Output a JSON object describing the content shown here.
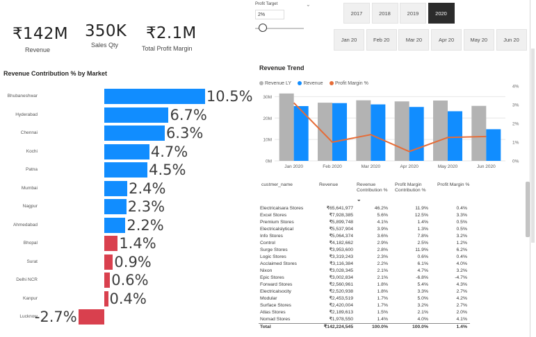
{
  "kpis": [
    {
      "value": "₹142M",
      "label": "Revenue"
    },
    {
      "value": "350K",
      "label": "Sales Qty"
    },
    {
      "value": "₹2.1M",
      "label": "Total Profit Margin"
    }
  ],
  "profit_target": {
    "label": "Profit Target",
    "value": "2%",
    "slider_level": 0.15
  },
  "years": [
    {
      "label": "2017",
      "selected": false
    },
    {
      "label": "2018",
      "selected": false
    },
    {
      "label": "2019",
      "selected": false
    },
    {
      "label": "2020",
      "selected": true
    }
  ],
  "months": [
    "Jan 20",
    "Feb 20",
    "Mar 20",
    "Apr 20",
    "May 20",
    "Jun 20"
  ],
  "market_chart": {
    "title": "Revenue Contribution % by Market",
    "markets": [
      "Bhubaneshwar",
      "Hyderabad",
      "Chennai",
      "Kochi",
      "Patna",
      "Mumbai",
      "Nagpur",
      "Ahmedabad",
      "Bhopal",
      "Surat",
      "Delhi NCR",
      "Kanpur",
      "Lucknow"
    ],
    "values": [
      10.5,
      6.7,
      6.3,
      4.7,
      4.5,
      2.4,
      2.3,
      2.2,
      1.4,
      0.9,
      0.6,
      0.4,
      -2.7
    ],
    "labels": [
      "10.5%",
      "6.7%",
      "6.3%",
      "4.7%",
      "4.5%",
      "2.4%",
      "2.3%",
      "2.2%",
      "1.4%",
      "0.9%",
      "0.6%",
      "0.4%",
      "-2.7%"
    ],
    "colors": {
      "above": "#118DFF",
      "below": "#D9404E"
    }
  },
  "trend_chart": {
    "title": "Revenue Trend",
    "legend": [
      {
        "name": "Revenue LY",
        "color": "#B3B3B3"
      },
      {
        "name": "Revenue",
        "color": "#118DFF"
      },
      {
        "name": "Profit Margin %",
        "color": "#E66C37"
      }
    ],
    "left_ticks": [
      "30M",
      "20M",
      "10M",
      "0M"
    ],
    "right_ticks": [
      "4%",
      "3%",
      "2%",
      "1%",
      "0%"
    ]
  },
  "chart_data": [
    {
      "type": "bar",
      "title": "Revenue Contribution % by Market",
      "categories": [
        "Bhubaneshwar",
        "Hyderabad",
        "Chennai",
        "Kochi",
        "Patna",
        "Mumbai",
        "Nagpur",
        "Ahmedabad",
        "Bhopal",
        "Surat",
        "Delhi NCR",
        "Kanpur",
        "Lucknow"
      ],
      "values": [
        10.5,
        6.7,
        6.3,
        4.7,
        4.5,
        2.4,
        2.3,
        2.2,
        1.4,
        0.9,
        0.6,
        0.4,
        -2.7
      ]
    },
    {
      "type": "bar",
      "title": "Revenue Trend",
      "categories": [
        "Jan 2020",
        "Feb 2020",
        "Mar 2020",
        "Apr 2020",
        "May 2020",
        "Jun 2020"
      ],
      "series": [
        {
          "name": "Revenue LY",
          "values": [
            31.5,
            27.2,
            28.3,
            27.8,
            28.2,
            25.7
          ]
        },
        {
          "name": "Revenue",
          "values": [
            25.6,
            27.0,
            26.4,
            25.2,
            23.2,
            14.8
          ]
        },
        {
          "name": "Profit Margin %",
          "values": [
            3.1,
            1.0,
            1.4,
            0.5,
            1.25,
            1.3
          ]
        }
      ],
      "ylim": [
        0,
        35
      ],
      "y2lim": [
        0,
        4
      ]
    }
  ],
  "table": {
    "headers": [
      "custmer_name",
      "Revenue",
      "Revenue Contribution %",
      "Profit Margin Contribution %",
      "Profit Margin %"
    ],
    "rows": [
      [
        "Electricalsara Stores",
        "₹65,641,977",
        "46.2%",
        "11.9%",
        "0.4%"
      ],
      [
        "Excel Stores",
        "₹7,928,385",
        "5.6%",
        "12.5%",
        "3.3%"
      ],
      [
        "Premium Stores",
        "₹5,899,748",
        "4.1%",
        "1.4%",
        "0.5%"
      ],
      [
        "Electricalslytical",
        "₹5,537,904",
        "3.9%",
        "1.3%",
        "0.5%"
      ],
      [
        "Info Stores",
        "₹5,064,374",
        "3.6%",
        "7.8%",
        "3.2%"
      ],
      [
        "Control",
        "₹4,182,662",
        "2.9%",
        "2.5%",
        "1.2%"
      ],
      [
        "Surge Stores",
        "₹3,953,600",
        "2.8%",
        "11.9%",
        "6.2%"
      ],
      [
        "Logic Stores",
        "₹3,319,243",
        "2.3%",
        "0.6%",
        "0.4%"
      ],
      [
        "Acclaimed Stores",
        "₹3,116,384",
        "2.2%",
        "6.1%",
        "4.0%"
      ],
      [
        "Nixon",
        "₹3,028,345",
        "2.1%",
        "4.7%",
        "3.2%"
      ],
      [
        "Epic Stores",
        "₹3,002,834",
        "2.1%",
        "-6.8%",
        "-4.7%"
      ],
      [
        "Forward Stores",
        "₹2,560,961",
        "1.8%",
        "5.4%",
        "4.3%"
      ],
      [
        "Electricalsocity",
        "₹2,520,938",
        "1.8%",
        "3.3%",
        "2.7%"
      ],
      [
        "Modular",
        "₹2,453,519",
        "1.7%",
        "5.0%",
        "4.2%"
      ],
      [
        "Surface Stores",
        "₹2,420,004",
        "1.7%",
        "3.2%",
        "2.7%"
      ],
      [
        "Atlas Stores",
        "₹2,189,613",
        "1.5%",
        "2.1%",
        "2.0%"
      ],
      [
        "Nomad Stores",
        "₹1,978,550",
        "1.4%",
        "4.0%",
        "4.1%"
      ]
    ],
    "total": [
      "Total",
      "₹142,224,545",
      "100.0%",
      "100.0%",
      "1.4%"
    ]
  }
}
